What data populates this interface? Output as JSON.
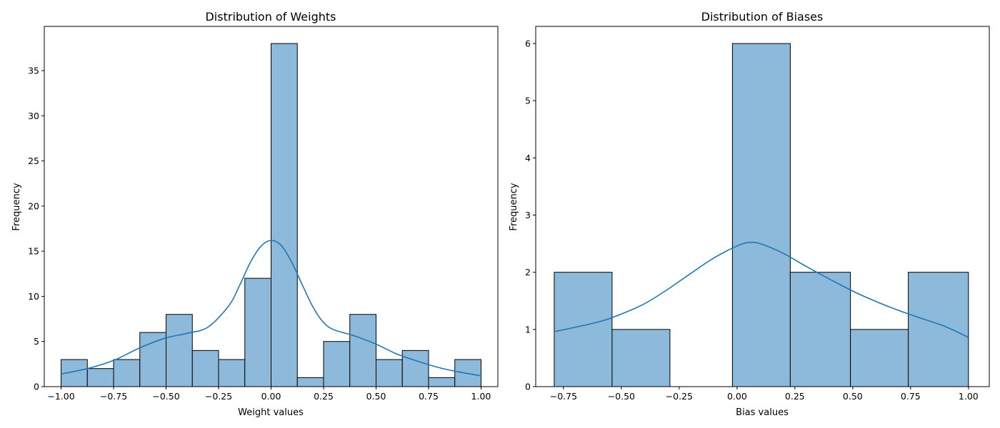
{
  "colors": {
    "bar_fill": "#8db9db",
    "bar_edge": "#000000",
    "kde_line": "#1f77b4",
    "axes": "#000000",
    "background": "#ffffff"
  },
  "chart_data": [
    {
      "type": "bar",
      "subtype": "histogram-with-kde",
      "title": "Distribution of Weights",
      "xlabel": "Weight values",
      "ylabel": "Frequency",
      "xlim": [
        -1.08,
        1.08
      ],
      "ylim": [
        0,
        39.9
      ],
      "xticks": [
        -1.0,
        -0.75,
        -0.5,
        -0.25,
        0.0,
        0.25,
        0.5,
        0.75,
        1.0
      ],
      "xtick_labels": [
        "−1.00",
        "−0.75",
        "−0.50",
        "−0.25",
        "0.00",
        "0.25",
        "0.50",
        "0.75",
        "1.00"
      ],
      "yticks": [
        0,
        5,
        10,
        15,
        20,
        25,
        30,
        35
      ],
      "ytick_labels": [
        "0",
        "5",
        "10",
        "15",
        "20",
        "25",
        "30",
        "35"
      ],
      "bin_edges": [
        -1.0,
        -0.875,
        -0.75,
        -0.625,
        -0.5,
        -0.375,
        -0.25,
        -0.125,
        0.0,
        0.125,
        0.25,
        0.375,
        0.5,
        0.625,
        0.75,
        0.875,
        1.0
      ],
      "values": [
        3,
        2,
        3,
        6,
        8,
        4,
        3,
        12,
        38,
        1,
        5,
        8,
        3,
        4,
        1,
        3
      ],
      "kde": {
        "x": [
          -1.0,
          -0.875,
          -0.75,
          -0.625,
          -0.5,
          -0.4,
          -0.3,
          -0.2,
          -0.15,
          -0.1,
          -0.05,
          0.0,
          0.05,
          0.1,
          0.15,
          0.2,
          0.25,
          0.3,
          0.4,
          0.5,
          0.6,
          0.7,
          0.8,
          0.9,
          1.0
        ],
        "y": [
          1.4,
          2.0,
          2.9,
          4.3,
          5.4,
          5.9,
          6.6,
          9.0,
          11.2,
          13.7,
          15.5,
          16.2,
          15.6,
          13.7,
          11.2,
          8.8,
          7.1,
          6.3,
          5.6,
          4.7,
          3.6,
          2.8,
          2.1,
          1.6,
          1.2
        ]
      }
    },
    {
      "type": "bar",
      "subtype": "histogram-with-kde",
      "title": "Distribution of Biases",
      "xlabel": "Bias values",
      "ylabel": "Frequency",
      "xlim": [
        -0.87,
        1.09
      ],
      "ylim": [
        0,
        6.3
      ],
      "xticks": [
        -0.75,
        -0.5,
        -0.25,
        0.0,
        0.25,
        0.5,
        0.75,
        1.0
      ],
      "xtick_labels": [
        "−0.75",
        "−0.50",
        "−0.25",
        "0.00",
        "0.25",
        "0.50",
        "0.75",
        "1.00"
      ],
      "yticks": [
        0,
        1,
        2,
        3,
        4,
        5,
        6
      ],
      "ytick_labels": [
        "0",
        "1",
        "2",
        "3",
        "4",
        "5",
        "6"
      ],
      "bin_edges": [
        -0.79,
        -0.54,
        -0.29,
        -0.02,
        0.23,
        0.49,
        0.74,
        1.0
      ],
      "values": [
        2,
        1,
        0,
        6,
        2,
        1,
        2
      ],
      "kde": {
        "x": [
          -0.79,
          -0.6,
          -0.5,
          -0.4,
          -0.3,
          -0.2,
          -0.1,
          0.0,
          0.05,
          0.1,
          0.2,
          0.3,
          0.4,
          0.5,
          0.6,
          0.7,
          0.8,
          0.9,
          1.0
        ],
        "y": [
          0.96,
          1.13,
          1.27,
          1.45,
          1.7,
          1.98,
          2.25,
          2.46,
          2.52,
          2.5,
          2.33,
          2.1,
          1.88,
          1.67,
          1.49,
          1.33,
          1.19,
          1.05,
          0.86
        ]
      }
    }
  ]
}
